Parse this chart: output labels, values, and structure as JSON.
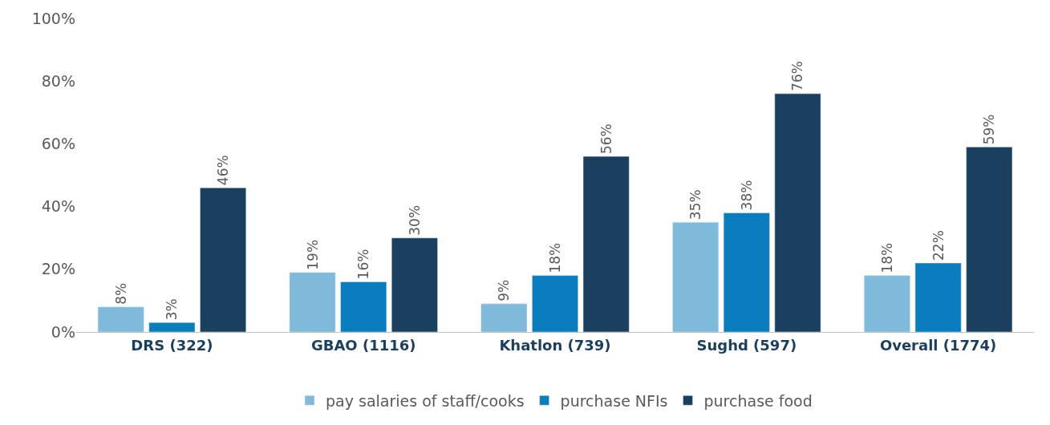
{
  "chart_data": {
    "type": "bar",
    "categories": [
      "DRS (322)",
      "GBAO (1116)",
      "Khatlon (739)",
      "Sughd (597)",
      "Overall (1774)"
    ],
    "series": [
      {
        "name": "pay salaries of staff/cooks",
        "color": "#7fbadb",
        "values": [
          8,
          19,
          9,
          35,
          18
        ],
        "value_labels": [
          "8%",
          "19%",
          "9%",
          "35%",
          "18%"
        ]
      },
      {
        "name": "purchase NFIs",
        "color": "#0a7dbf",
        "values": [
          3,
          16,
          18,
          38,
          22
        ],
        "value_labels": [
          "3%",
          "16%",
          "18%",
          "38%",
          "22%"
        ]
      },
      {
        "name": "purchase food",
        "color": "#1b3f5f",
        "values": [
          46,
          30,
          56,
          76,
          59
        ],
        "value_labels": [
          "46%",
          "30%",
          "56%",
          "76%",
          "59%"
        ]
      }
    ],
    "ylim": [
      0,
      100
    ],
    "yticks": [
      {
        "value": 0,
        "label": "0%"
      },
      {
        "value": 20,
        "label": "20%"
      },
      {
        "value": 40,
        "label": "40%"
      },
      {
        "value": 60,
        "label": "60%"
      },
      {
        "value": 80,
        "label": "80%"
      },
      {
        "value": 100,
        "label": "100%"
      }
    ],
    "legend": "bottom"
  }
}
